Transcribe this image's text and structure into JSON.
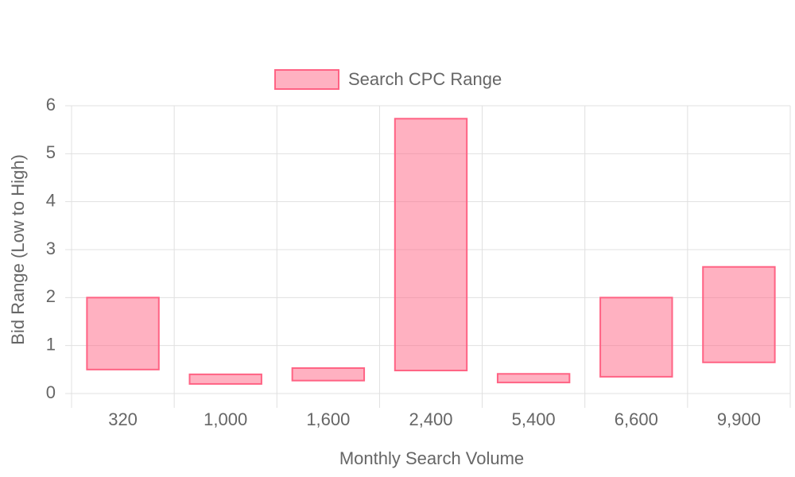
{
  "chart_data": {
    "type": "floating-bar",
    "x_label": "Monthly Search Volume",
    "y_label": "Bid Range (Low to High)",
    "categories": [
      "320",
      "1,000",
      "1,600",
      "2,400",
      "5,400",
      "6,600",
      "9,900"
    ],
    "series": [
      {
        "name": "Search CPC Range",
        "color": "#ff6384",
        "low": [
          0.5,
          0.2,
          0.27,
          0.48,
          0.23,
          0.35,
          0.65
        ],
        "high": [
          2.0,
          0.4,
          0.53,
          5.73,
          0.41,
          2.0,
          2.64
        ]
      }
    ],
    "ylim": [
      0,
      6
    ],
    "yticks": [
      0,
      1,
      2,
      3,
      4,
      5,
      6
    ],
    "grid": true,
    "legend": "top"
  }
}
